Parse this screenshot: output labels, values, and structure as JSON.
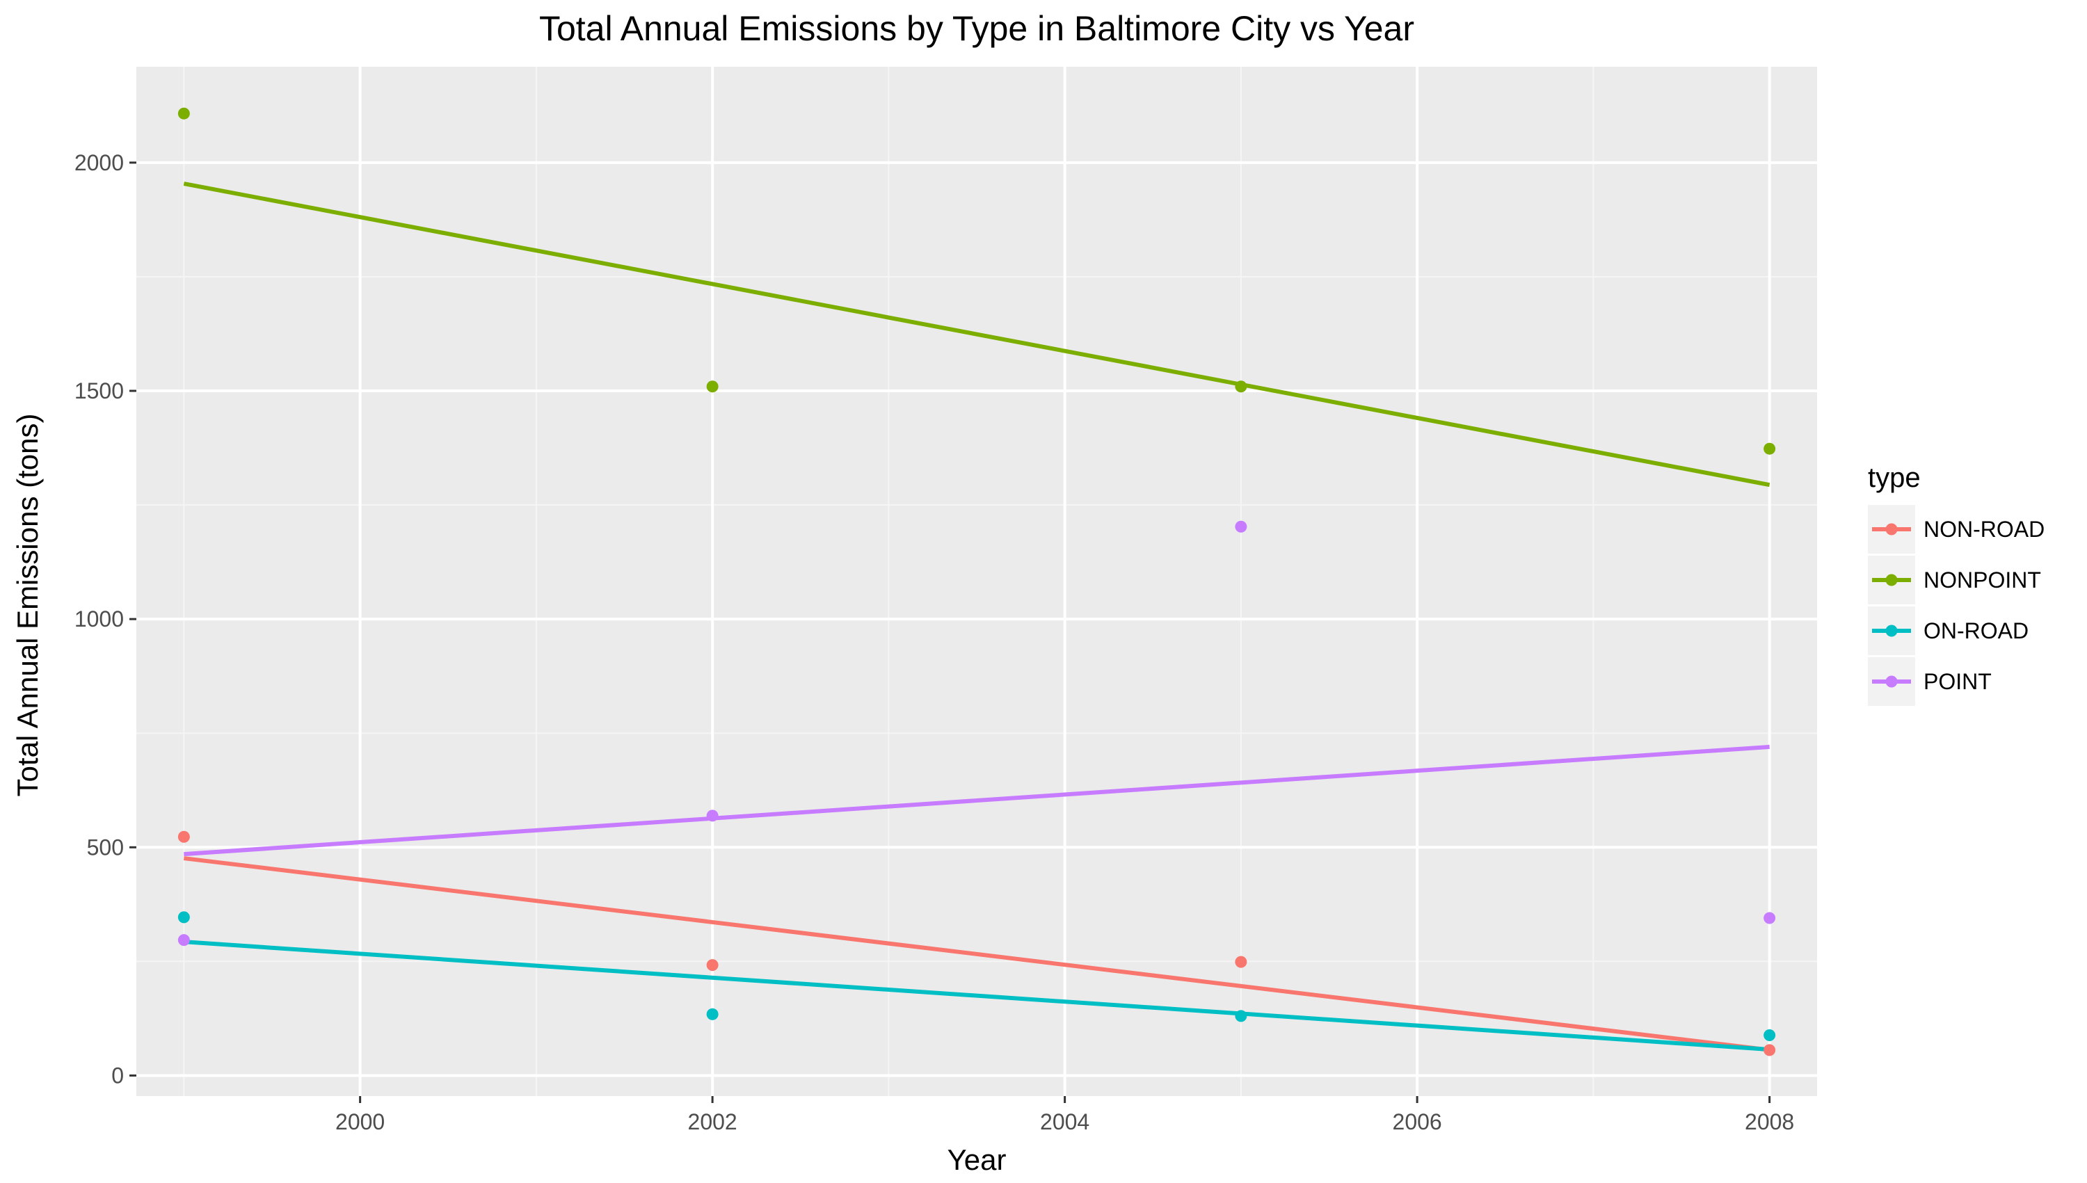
{
  "chart_data": {
    "type": "scatter",
    "title": "Total Annual Emissions by Type in Baltimore City vs Year",
    "xlabel": "Year",
    "ylabel": "Total Annual Emissions (tons)",
    "xlim": [
      1998.73,
      2008.27
    ],
    "ylim": [
      -45,
      2210
    ],
    "x_ticks": [
      2000,
      2002,
      2004,
      2006,
      2008
    ],
    "x_tick_labels": [
      "2000",
      "2002",
      "2004",
      "2006",
      "2008"
    ],
    "y_ticks": [
      0,
      500,
      1000,
      1500,
      2000
    ],
    "y_tick_labels": [
      "0",
      "500",
      "1000",
      "1500",
      "2000"
    ],
    "grid": true,
    "legend": {
      "title": "type",
      "placement": "right"
    },
    "series": [
      {
        "name": "NON-ROAD",
        "color": "#F8766D",
        "x": [
          1999,
          2002,
          2005,
          2008
        ],
        "values": [
          522.9,
          242.0,
          248.9,
          55.8
        ],
        "trend": [
          476,
          56
        ]
      },
      {
        "name": "NONPOINT",
        "color": "#7CAE00",
        "x": [
          1999,
          2002,
          2005,
          2008
        ],
        "values": [
          2107.6,
          1509.5,
          1509.5,
          1373.2
        ],
        "trend": [
          1954,
          1294
        ]
      },
      {
        "name": "ON-ROAD",
        "color": "#00BFC4",
        "x": [
          1999,
          2002,
          2005,
          2008
        ],
        "values": [
          346.8,
          134.3,
          130.4,
          88.3
        ],
        "trend": [
          293,
          57
        ]
      },
      {
        "name": "POINT",
        "color": "#C77CFF",
        "x": [
          1999,
          2002,
          2005,
          2008
        ],
        "values": [
          296.8,
          569.3,
          1202.5,
          344.98
        ],
        "trend": [
          485,
          720
        ]
      }
    ],
    "trend_x": [
      1999,
      2008
    ]
  }
}
